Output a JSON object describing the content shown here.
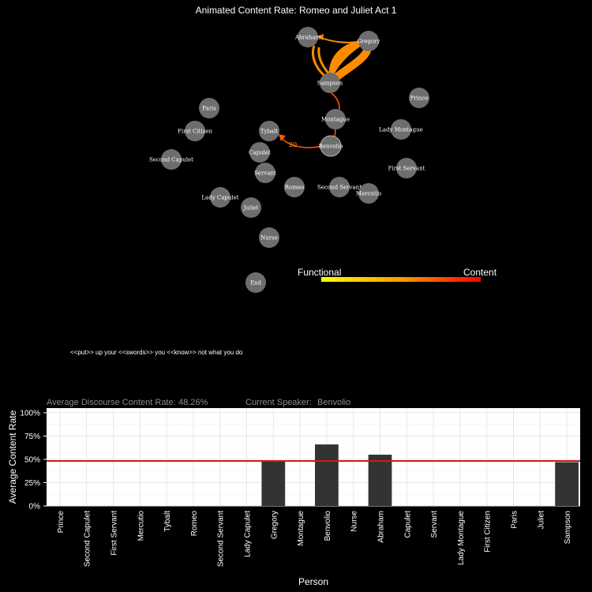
{
  "title": "Animated Content Rate: Romeo and Juliet Act 1",
  "colors": {
    "background": "#000000",
    "node_fill": "#6e6e6e",
    "edge_color": "#ff8c00",
    "edge_dark": "#ff5a00",
    "bar_fill": "#333333",
    "mean_line": "#d11a1a",
    "grid": "#e5e5e5"
  },
  "network": {
    "nodes": [
      {
        "name": "Abraham"
      },
      {
        "name": "Gregory"
      },
      {
        "name": "Sampson"
      },
      {
        "name": "Prince"
      },
      {
        "name": "Paris"
      },
      {
        "name": "Montague"
      },
      {
        "name": "First Citizen"
      },
      {
        "name": "Tybalt"
      },
      {
        "name": "Lady Montague"
      },
      {
        "name": "Benvolio"
      },
      {
        "name": "Second Capulet"
      },
      {
        "name": "Capulet"
      },
      {
        "name": "First Servant"
      },
      {
        "name": "Servant"
      },
      {
        "name": "Romeo"
      },
      {
        "name": "Second Servant"
      },
      {
        "name": "Mercutio"
      },
      {
        "name": "Lady Capulet"
      },
      {
        "name": "Juliet"
      },
      {
        "name": "Nurse"
      },
      {
        "name": "End"
      }
    ],
    "edge_label": "20"
  },
  "legend": {
    "low_label": "Functional",
    "high_label": "Content",
    "gradient": [
      "#ffff00",
      "#ff9900",
      "#ff0000"
    ]
  },
  "dialogue": "<<put>> up your <<swords>> you <<know>> not what you do",
  "stats": {
    "avg_label": "Average Discourse Content Rate:",
    "avg_value": "48.26%",
    "speaker_label": "Current Speaker:",
    "speaker_value": "Benvolio"
  },
  "chart_data": {
    "type": "bar",
    "xlabel": "Person",
    "ylabel": "Average Content Rate",
    "ylim": [
      0,
      1.05
    ],
    "yticks": [
      "0%",
      "25%",
      "50%",
      "75%",
      "100%"
    ],
    "ytick_values": [
      0,
      0.25,
      0.5,
      0.75,
      1.0
    ],
    "categories": [
      "Prince",
      "Second Capulet",
      "First Servant",
      "Mercutio",
      "Tybalt",
      "Romeo",
      "Second Servant",
      "Lady Capulet",
      "Gregory",
      "Montague",
      "Benvolio",
      "Nurse",
      "Abraham",
      "Capulet",
      "Servant",
      "Lady Montague",
      "First Citizen",
      "Paris",
      "Juliet",
      "Sampson"
    ],
    "values": [
      0,
      0,
      0,
      0,
      0,
      0,
      0,
      0,
      0.48,
      0,
      0.66,
      0,
      0.55,
      0,
      0,
      0,
      0,
      0,
      0,
      0.47
    ],
    "mean_line": 0.4826,
    "grid": true
  }
}
